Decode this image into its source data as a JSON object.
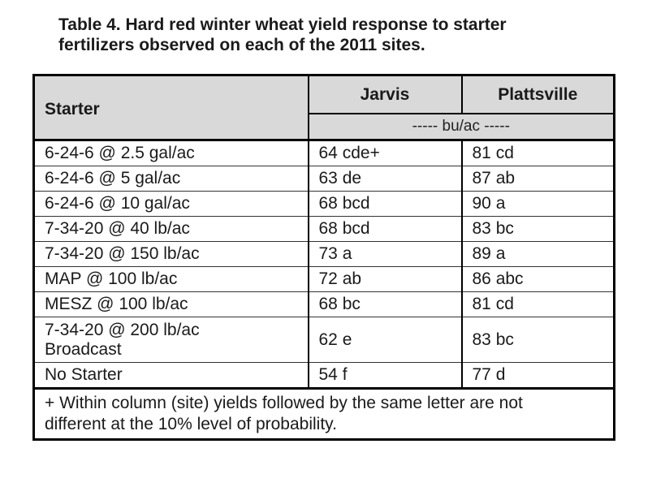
{
  "caption": {
    "line1": "Table 4. Hard red winter wheat yield response to starter",
    "line2": "fertilizers observed on each of the 2011 sites."
  },
  "header": {
    "col1": "Starter",
    "col2": "Jarvis",
    "col3": "Plattsville",
    "unit": "----- bu/ac -----"
  },
  "rows": [
    {
      "starter": "6-24-6 @ 2.5 gal/ac",
      "jarvis": "64 cde+",
      "plattsville": "81 cd"
    },
    {
      "starter": "6-24-6 @ 5 gal/ac",
      "jarvis": "63 de",
      "plattsville": "87 ab"
    },
    {
      "starter": "6-24-6 @ 10 gal/ac",
      "jarvis": "68 bcd",
      "plattsville": "90 a"
    },
    {
      "starter": "7-34-20 @ 40 lb/ac",
      "jarvis": "68 bcd",
      "plattsville": "83 bc"
    },
    {
      "starter": "7-34-20 @ 150 lb/ac",
      "jarvis": "73 a",
      "plattsville": "89 a"
    },
    {
      "starter": "MAP @ 100 lb/ac",
      "jarvis": "72 ab",
      "plattsville": "86 abc"
    },
    {
      "starter": "MESZ @ 100 lb/ac",
      "jarvis": "68 bc",
      "plattsville": "81 cd"
    },
    {
      "starter": "7-34-20 @ 200 lb/ac",
      "starter_line2": "Broadcast",
      "jarvis": "62 e",
      "plattsville": "83 bc"
    },
    {
      "starter": "No Starter",
      "jarvis": "54 f",
      "plattsville": "77 d"
    }
  ],
  "footnote": {
    "line1": "+ Within column (site) yields followed by the same letter are not",
    "line2": "different at the 10% level of probability."
  }
}
